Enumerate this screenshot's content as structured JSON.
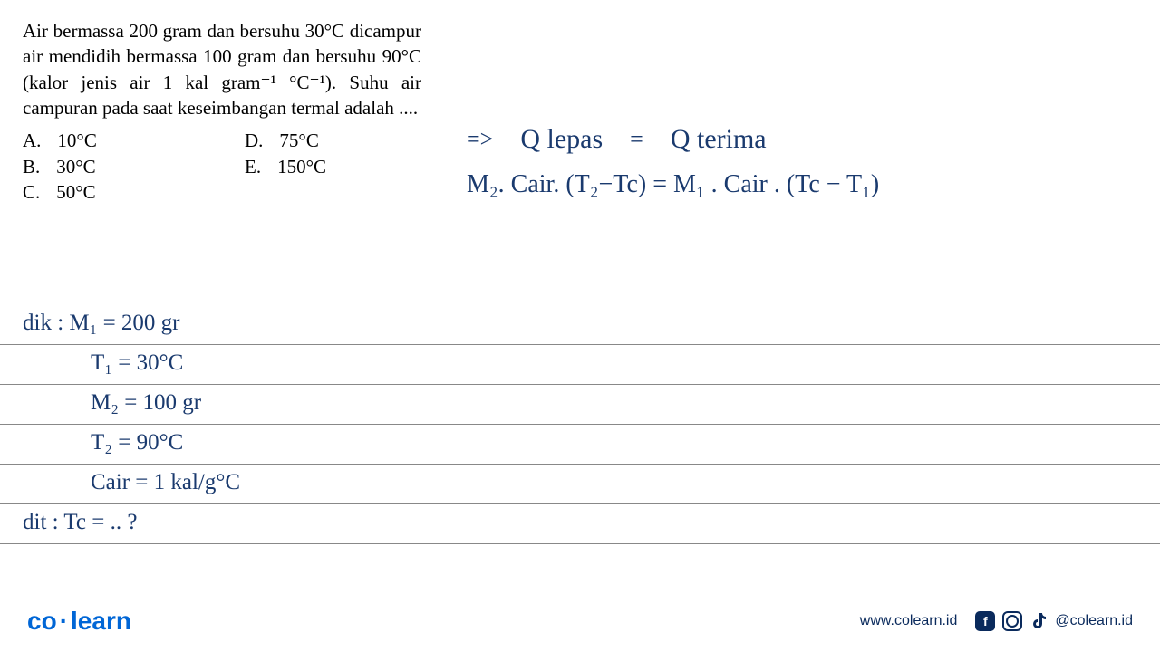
{
  "question": {
    "text": "Air bermassa 200 gram dan bersuhu 30°C dicampur air mendidih bermassa 100 gram dan bersuhu 90°C (kalor jenis air 1 kal gram⁻¹ °C⁻¹). Suhu air campuran pada saat keseimbangan termal adalah ....",
    "options": {
      "A": "10°C",
      "B": "30°C",
      "C": "50°C",
      "D": "75°C",
      "E": "150°C"
    }
  },
  "handwriting_right": {
    "line1_left": "=>",
    "line1_mid": "Q lepas",
    "line1_eq": "=",
    "line1_right": "Q terima",
    "line2": "M₂. Cair. (T₂−Tc) = M₁ . Cair . (Tc − T₁)"
  },
  "handwriting_bottom": {
    "l1": "dik : M₁ = 200 gr",
    "l2": "T₁ = 30°C",
    "l3": "M₂ = 100 gr",
    "l4": "T₂ = 90°C",
    "l5": "Cair = 1 kal/g°C",
    "l6": "dit : Tc = .. ?"
  },
  "ruled_lines_y": [
    380,
    424,
    468,
    512,
    556,
    600
  ],
  "colors": {
    "handwriting": "#1a3a6e",
    "print": "#000000",
    "rule": "#888888",
    "logo": "#0066d6",
    "footer_text": "#0a2a5c"
  },
  "footer": {
    "logo_left": "co",
    "logo_right": "learn",
    "url": "www.colearn.id",
    "handle": "@colearn.id"
  }
}
